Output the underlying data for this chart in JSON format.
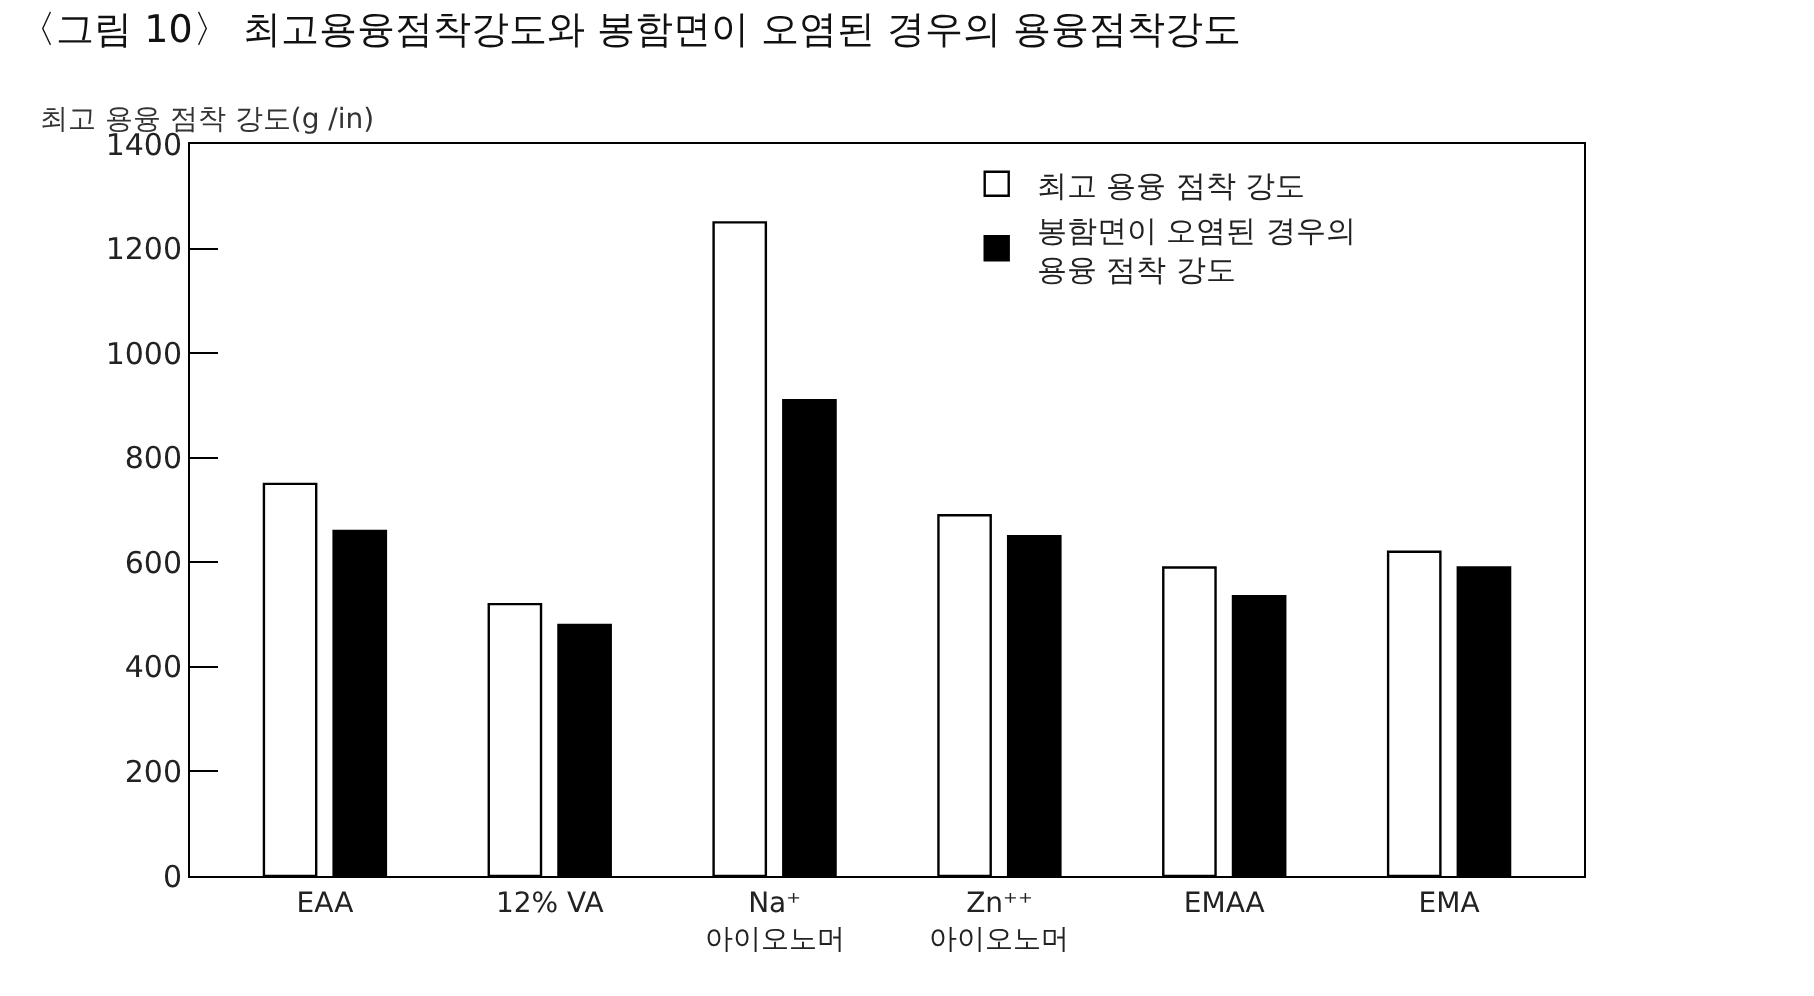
{
  "chart_data": {
    "type": "bar",
    "title": "〈그림 10〉 최고용융점착강도와 봉함면이 오염된 경우의 용융점착강도",
    "ylabel": "최고 용융 점착 강도(g /in)",
    "categories": [
      "EAA",
      "12% VA",
      "Na⁺\n아이오노머",
      "Zn⁺⁺\n아이오노머",
      "EMAA",
      "EMA"
    ],
    "series": [
      {
        "name": "최고 용융 점착 강도",
        "color": "#ffffff",
        "values": [
          750,
          520,
          1250,
          690,
          590,
          620
        ]
      },
      {
        "name": "봉함면이 오염된 경우의\n용융 점착 강도",
        "color": "#000000",
        "values": [
          660,
          480,
          910,
          650,
          535,
          590
        ]
      }
    ],
    "ylim": [
      0,
      1400
    ],
    "yticks": [
      0,
      200,
      400,
      600,
      800,
      1000,
      1200,
      1400
    ],
    "grid": false,
    "legend": "top right"
  }
}
